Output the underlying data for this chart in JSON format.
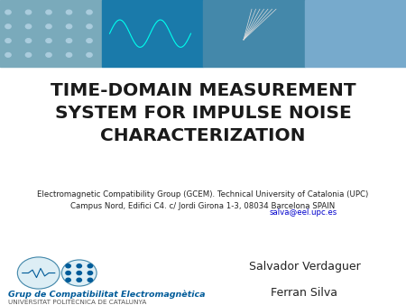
{
  "title_line1": "TIME-DOMAIN MEASUREMENT",
  "title_line2": "SYSTEM FOR IMPULSE NOISE",
  "title_line3": "CHARACTERIZATION",
  "affiliation_line1": "Electromagnetic Compatibility Group (GCEM). Technical University of Catalonia (UPC)",
  "affiliation_line2": "Campus Nord, Edifici C4. c/ Jordi Girona 1-3, 08034 Barcelona SPAIN",
  "email": "salva@eel.upc.es",
  "author1": "Salvador Verdaguer",
  "author2": "Ferran Silva",
  "group_name": "Grup de Compatibilitat Electromagnètica",
  "university": "UNIVERSITAT POLITÈCNICA DE CATALUNYA",
  "bg_color": "#ffffff",
  "title_color": "#1a1a1a",
  "body_color": "#222222",
  "email_color": "#0000cc",
  "group_color": "#005b99",
  "univ_color": "#555555",
  "title_fontsize": 14.5,
  "body_fontsize": 6.2,
  "author_fontsize": 9,
  "group_fontsize": 6.8,
  "univ_fontsize": 5.2,
  "panel_colors": [
    "#7aaabb",
    "#1a7aaa",
    "#4488aa",
    "#77aacc"
  ]
}
